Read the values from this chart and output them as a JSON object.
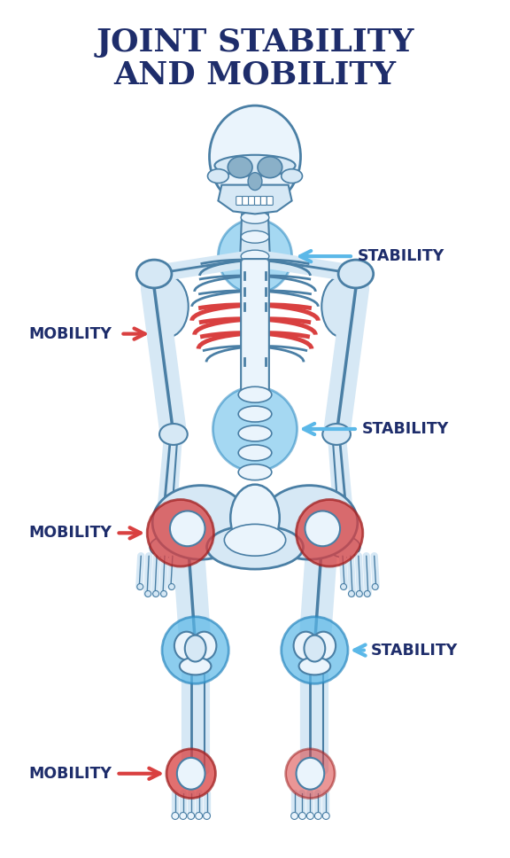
{
  "title_line1": "JOINT STABILITY",
  "title_line2": "AND MOBILITY",
  "title_color": "#1e2d6b",
  "title_fontsize": 26,
  "bg_color": "#ffffff",
  "stability_color": "#5bb8e8",
  "stability_edge": "#2a88c0",
  "mobility_color": "#d94040",
  "mobility_edge": "#a02020",
  "bone_fill": "#d6e8f5",
  "bone_edge": "#4a7fa5",
  "bone_light": "#eaf4fc",
  "label_color": "#1e2d6b",
  "label_fontsize": 12.5,
  "figsize": [
    5.76,
    9.68
  ],
  "dpi": 100
}
